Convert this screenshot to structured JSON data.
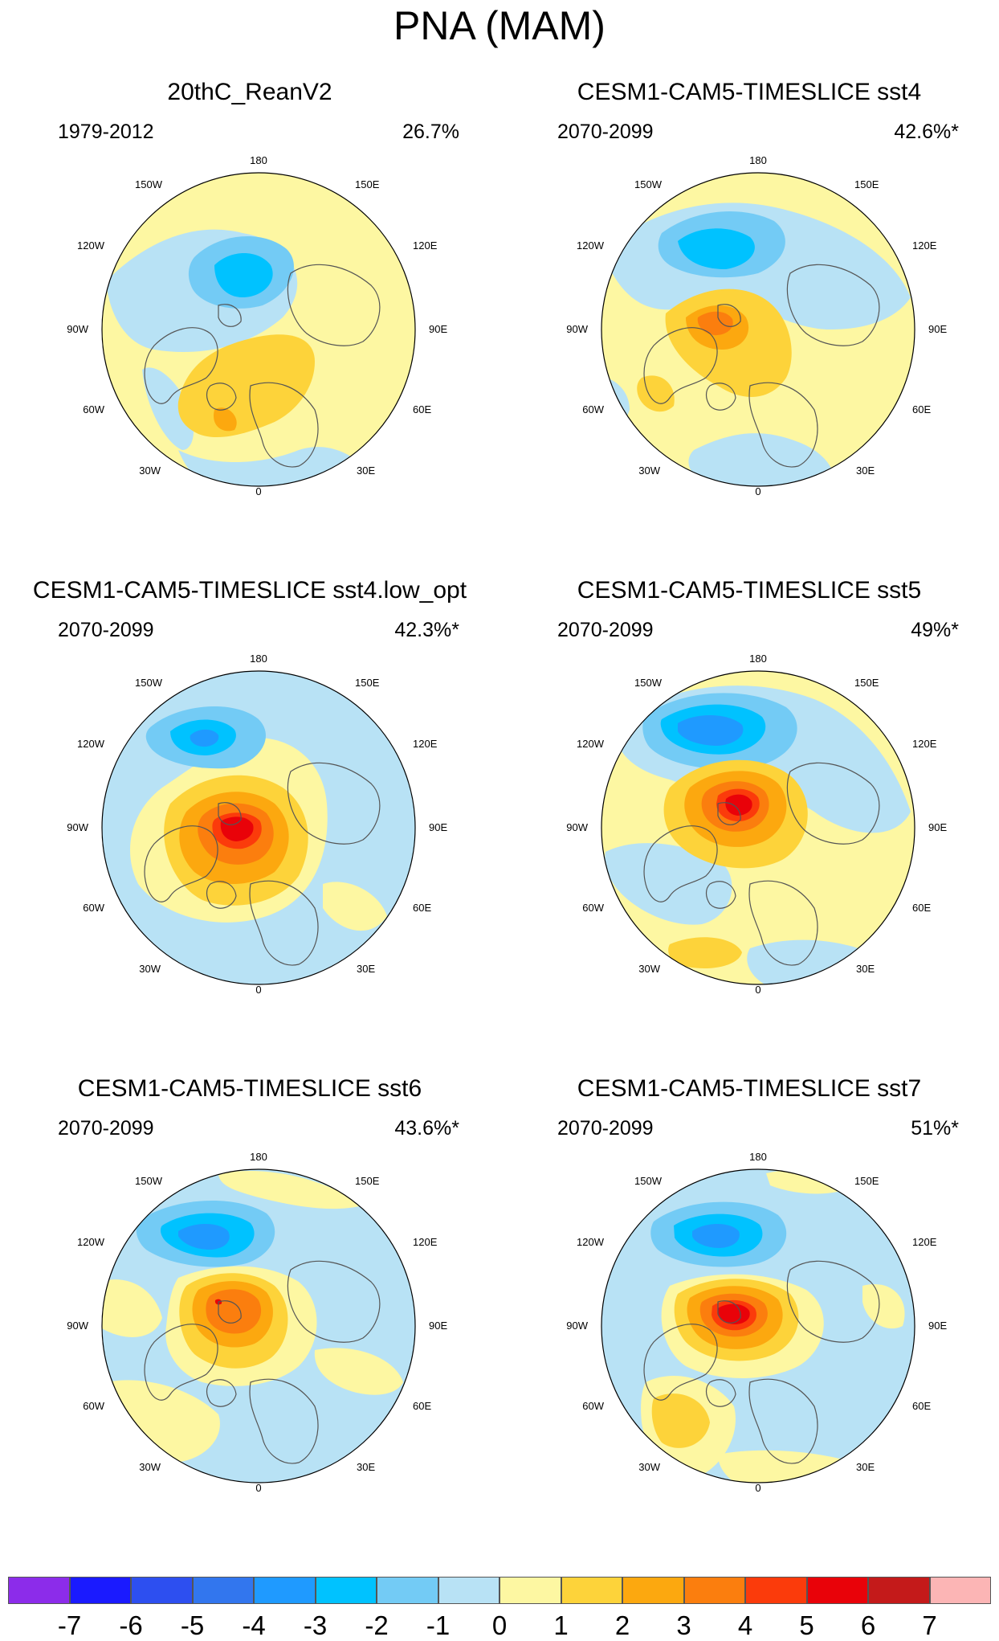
{
  "title": "PNA (MAM)",
  "colors": {
    "levels": [
      "#8c2cea",
      "#1a1aff",
      "#2d4ff0",
      "#3276ee",
      "#1f9aff",
      "#00c2ff",
      "#73cbf5",
      "#b8e2f5",
      "#fdf7a2",
      "#fdd33a",
      "#fca80f",
      "#fb7e0e",
      "#fb3b0b",
      "#e90209",
      "#c41a1a",
      "#fcb5b5"
    ],
    "land_outline": "#555555"
  },
  "panels": [
    {
      "title": "20thC_ReanV2",
      "period": "1979-2012",
      "variance": "26.7%",
      "significant": false
    },
    {
      "title": "CESM1-CAM5-TIMESLICE sst4",
      "period": "2070-2099",
      "variance": "42.6%*",
      "significant": true
    },
    {
      "title": "CESM1-CAM5-TIMESLICE sst4.low_opt",
      "period": "2070-2099",
      "variance": "42.3%*",
      "significant": true
    },
    {
      "title": "CESM1-CAM5-TIMESLICE sst5",
      "period": "2070-2099",
      "variance": "49%*",
      "significant": true
    },
    {
      "title": "CESM1-CAM5-TIMESLICE sst6",
      "period": "2070-2099",
      "variance": "43.6%*",
      "significant": true
    },
    {
      "title": "CESM1-CAM5-TIMESLICE sst7",
      "period": "2070-2099",
      "variance": "51%*",
      "significant": true
    }
  ],
  "longitude_labels": [
    "180",
    "150E",
    "120E",
    "90E",
    "60E",
    "30E",
    "0",
    "30W",
    "60W",
    "90W",
    "120W",
    "150W"
  ],
  "colorbar": {
    "labels": [
      "-7",
      "-6",
      "-5",
      "-4",
      "-3",
      "-2",
      "-1",
      "0",
      "1",
      "2",
      "3",
      "4",
      "5",
      "6",
      "7"
    ]
  }
}
